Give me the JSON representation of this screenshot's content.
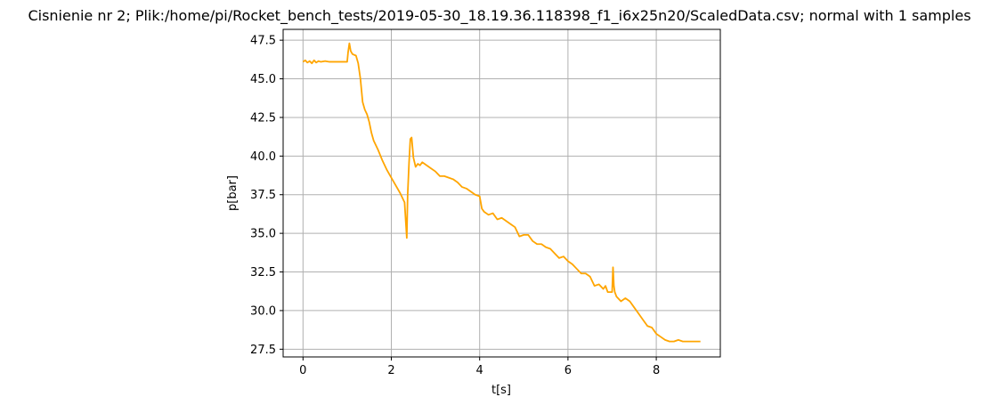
{
  "chart_data": {
    "type": "line",
    "title": "Cisnienie nr 2; Plik:/home/pi/Rocket_bench_tests/2019-05-30_18.19.36.118398_f1_i6x25n20/ScaledData.csv; normal with 1 samples",
    "xlabel": "t[s]",
    "ylabel": "p[bar]",
    "xlim": [
      -0.45,
      9.45
    ],
    "ylim": [
      27.0,
      48.2
    ],
    "xticks": [
      0,
      2,
      4,
      6,
      8
    ],
    "xtick_labels": [
      "0",
      "2",
      "4",
      "6",
      "8"
    ],
    "yticks": [
      27.5,
      30.0,
      32.5,
      35.0,
      37.5,
      40.0,
      42.5,
      45.0,
      47.5
    ],
    "ytick_labels": [
      "27.5",
      "30.0",
      "32.5",
      "35.0",
      "37.5",
      "40.0",
      "42.5",
      "45.0",
      "47.5"
    ],
    "grid": true,
    "series": [
      {
        "color": "#ffa500",
        "x": [
          0.0,
          0.05,
          0.1,
          0.15,
          0.2,
          0.25,
          0.3,
          0.35,
          0.4,
          0.5,
          0.6,
          0.7,
          0.8,
          0.9,
          1.0,
          1.02,
          1.05,
          1.08,
          1.12,
          1.2,
          1.25,
          1.3,
          1.35,
          1.4,
          1.45,
          1.5,
          1.55,
          1.6,
          1.7,
          1.8,
          1.9,
          2.0,
          2.1,
          2.2,
          2.3,
          2.35,
          2.37,
          2.4,
          2.43,
          2.46,
          2.5,
          2.55,
          2.6,
          2.65,
          2.7,
          2.75,
          2.8,
          2.9,
          3.0,
          3.1,
          3.2,
          3.3,
          3.4,
          3.5,
          3.6,
          3.7,
          3.8,
          3.9,
          4.0,
          4.05,
          4.1,
          4.2,
          4.3,
          4.4,
          4.5,
          4.6,
          4.7,
          4.8,
          4.9,
          5.0,
          5.1,
          5.2,
          5.3,
          5.4,
          5.5,
          5.6,
          5.7,
          5.8,
          5.9,
          6.0,
          6.1,
          6.2,
          6.3,
          6.4,
          6.5,
          6.6,
          6.7,
          6.8,
          6.85,
          6.9,
          6.95,
          7.0,
          7.02,
          7.04,
          7.06,
          7.1,
          7.2,
          7.3,
          7.4,
          7.5,
          7.6,
          7.7,
          7.8,
          7.9,
          8.0,
          8.1,
          8.2,
          8.3,
          8.4,
          8.5,
          8.6,
          8.8,
          9.0
        ],
        "y": [
          46.1,
          46.2,
          46.05,
          46.15,
          46.0,
          46.2,
          46.05,
          46.15,
          46.1,
          46.15,
          46.1,
          46.1,
          46.1,
          46.1,
          46.1,
          46.7,
          47.3,
          46.8,
          46.6,
          46.5,
          46.0,
          45.0,
          43.5,
          43.0,
          42.7,
          42.2,
          41.5,
          41.0,
          40.4,
          39.7,
          39.1,
          38.6,
          38.1,
          37.6,
          37.0,
          34.7,
          37.5,
          39.5,
          41.1,
          41.2,
          39.9,
          39.3,
          39.5,
          39.4,
          39.6,
          39.5,
          39.4,
          39.2,
          39.0,
          38.7,
          38.7,
          38.6,
          38.5,
          38.3,
          38.0,
          37.9,
          37.7,
          37.5,
          37.4,
          36.6,
          36.4,
          36.2,
          36.3,
          35.9,
          36.0,
          35.8,
          35.6,
          35.4,
          34.8,
          34.9,
          34.9,
          34.5,
          34.3,
          34.3,
          34.1,
          34.0,
          33.7,
          33.4,
          33.5,
          33.2,
          33.0,
          32.7,
          32.4,
          32.4,
          32.2,
          31.6,
          31.7,
          31.4,
          31.6,
          31.2,
          31.2,
          31.2,
          32.8,
          31.6,
          31.2,
          30.9,
          30.6,
          30.8,
          30.6,
          30.2,
          29.8,
          29.4,
          29.0,
          28.9,
          28.5,
          28.3,
          28.1,
          28.0,
          28.0,
          28.1,
          28.0,
          28.0,
          28.0
        ]
      }
    ]
  }
}
